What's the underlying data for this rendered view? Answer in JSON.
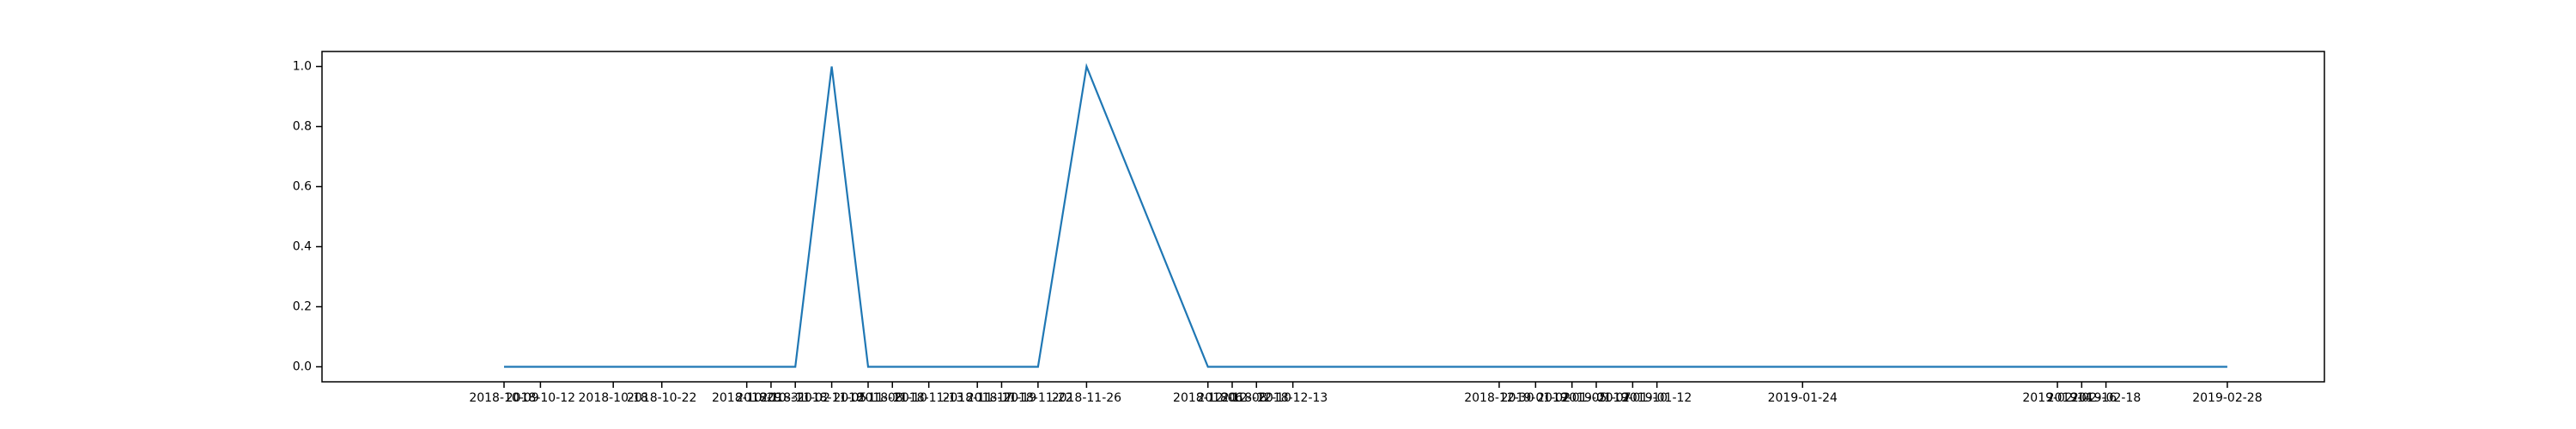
{
  "chart_data": {
    "type": "line",
    "title": "",
    "xlabel": "",
    "ylabel": "",
    "grid": false,
    "legend": "none",
    "ylim": [
      -0.05,
      1.05
    ],
    "xlim": [
      "2018-09-24",
      "2019-03-08"
    ],
    "x_ticks": [
      "2018-10-09",
      "2018-10-12",
      "2018-10-18",
      "2018-10-22",
      "2018-10-29",
      "2018-10-31",
      "2018-11-02",
      "2018-11-05",
      "2018-11-08",
      "2018-11-10",
      "2018-11-13",
      "2018-11-17",
      "2018-11-19",
      "2018-11-22",
      "2018-11-26",
      "2018-12-06",
      "2018-12-08",
      "2018-12-10",
      "2018-12-13",
      "2018-12-30",
      "2019-01-02",
      "2019-01-05",
      "2019-01-07",
      "2019-01-10",
      "2019-01-12",
      "2019-01-24",
      "2019-02-14",
      "2019-02-16",
      "2019-02-18",
      "2019-02-28"
    ],
    "y_ticks": [
      0.0,
      0.2,
      0.4,
      0.6,
      0.8,
      1.0
    ],
    "y_tick_labels": [
      "0.0",
      "0.2",
      "0.4",
      "0.6",
      "0.8",
      "1.0"
    ],
    "series": [
      {
        "color": "#1f77b4",
        "x": [
          "2018-10-09",
          "2018-10-12",
          "2018-10-18",
          "2018-10-22",
          "2018-10-29",
          "2018-10-31",
          "2018-11-02",
          "2018-11-05",
          "2018-11-08",
          "2018-11-10",
          "2018-11-13",
          "2018-11-17",
          "2018-11-19",
          "2018-11-22",
          "2018-11-26",
          "2018-12-06",
          "2018-12-08",
          "2018-12-10",
          "2018-12-13",
          "2018-12-30",
          "2019-01-02",
          "2019-01-05",
          "2019-01-07",
          "2019-01-10",
          "2019-01-12",
          "2019-01-24",
          "2019-02-14",
          "2019-02-16",
          "2019-02-18",
          "2019-02-28"
        ],
        "values": [
          0,
          0,
          0,
          0,
          0,
          0,
          0,
          1,
          0,
          0,
          0,
          0,
          0,
          0,
          1,
          0,
          0,
          0,
          0,
          0,
          0,
          0,
          0,
          0,
          0,
          0,
          0,
          0,
          0,
          0
        ]
      }
    ]
  },
  "colors": {
    "line": "#1f77b4",
    "axes": "#000000",
    "background": "#ffffff"
  }
}
